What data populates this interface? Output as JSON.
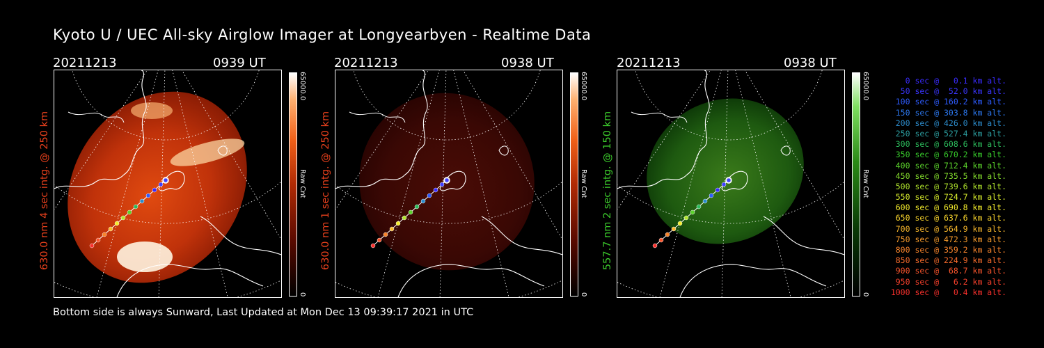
{
  "title": "Kyoto U / UEC All-sky Airglow Imager at Longyearbyen - Realtime Data",
  "footer": "Bottom side is always Sunward, Last Updated at Mon Dec 13 09:39:17 2021 in UTC",
  "panels": [
    {
      "date": "20211213",
      "time": "0939 UT",
      "ylabel": "630.0 nm 4 sec intg. @ 250 km",
      "ylabel_color": "#e8401c",
      "colorbar_max": "65000.0",
      "colorbar_min": "0",
      "colorbar_label": "Raw Cnt",
      "colormap": "red",
      "brightness": "bright"
    },
    {
      "date": "20211213",
      "time": "0938 UT",
      "ylabel": "630.0 nm 1 sec intg. @ 250 km",
      "ylabel_color": "#e8401c",
      "colorbar_max": "65000.0",
      "colorbar_min": "0",
      "colorbar_label": "Raw Cnt",
      "colormap": "red",
      "brightness": "dim"
    },
    {
      "date": "20211213",
      "time": "0938 UT",
      "ylabel": "557.7 nm 2 sec intg. @ 150 km",
      "ylabel_color": "#3ccc2c",
      "colorbar_max": "65000.0",
      "colorbar_min": "0",
      "colorbar_label": "Raw Cnt",
      "colormap": "green",
      "brightness": "medium"
    }
  ],
  "legend": [
    {
      "text": "   0 sec @   0.1 km alt.",
      "color": "#3a2cff"
    },
    {
      "text": "  50 sec @  52.0 km alt.",
      "color": "#3a36ff"
    },
    {
      "text": " 100 sec @ 160.2 km alt.",
      "color": "#2e5cff"
    },
    {
      "text": " 150 sec @ 303.8 km alt.",
      "color": "#2c78f0"
    },
    {
      "text": " 200 sec @ 426.0 km alt.",
      "color": "#2c8ccc"
    },
    {
      "text": " 250 sec @ 527.4 km alt.",
      "color": "#2c9ea0"
    },
    {
      "text": " 300 sec @ 608.6 km alt.",
      "color": "#2cbc5c"
    },
    {
      "text": " 350 sec @ 670.2 km alt.",
      "color": "#38cc2c"
    },
    {
      "text": " 400 sec @ 712.4 km alt.",
      "color": "#5cd42c"
    },
    {
      "text": " 450 sec @ 735.5 km alt.",
      "color": "#84dc2c"
    },
    {
      "text": " 500 sec @ 739.6 km alt.",
      "color": "#b0e42c"
    },
    {
      "text": " 550 sec @ 724.7 km alt.",
      "color": "#d8ec2c"
    },
    {
      "text": " 600 sec @ 690.8 km alt.",
      "color": "#f4ec2c"
    },
    {
      "text": " 650 sec @ 637.6 km alt.",
      "color": "#f8d42c"
    },
    {
      "text": " 700 sec @ 564.9 km alt.",
      "color": "#f8b82c"
    },
    {
      "text": " 750 sec @ 472.3 km alt.",
      "color": "#f89c2c"
    },
    {
      "text": " 800 sec @ 359.2 km alt.",
      "color": "#f8842c"
    },
    {
      "text": " 850 sec @ 224.9 km alt.",
      "color": "#f86c2c"
    },
    {
      "text": " 900 sec @  68.7 km alt.",
      "color": "#f8542c"
    },
    {
      "text": " 950 sec @   6.2 km alt.",
      "color": "#f8402c"
    },
    {
      "text": "1000 sec @   0.4 km alt.",
      "color": "#f8302c"
    }
  ]
}
